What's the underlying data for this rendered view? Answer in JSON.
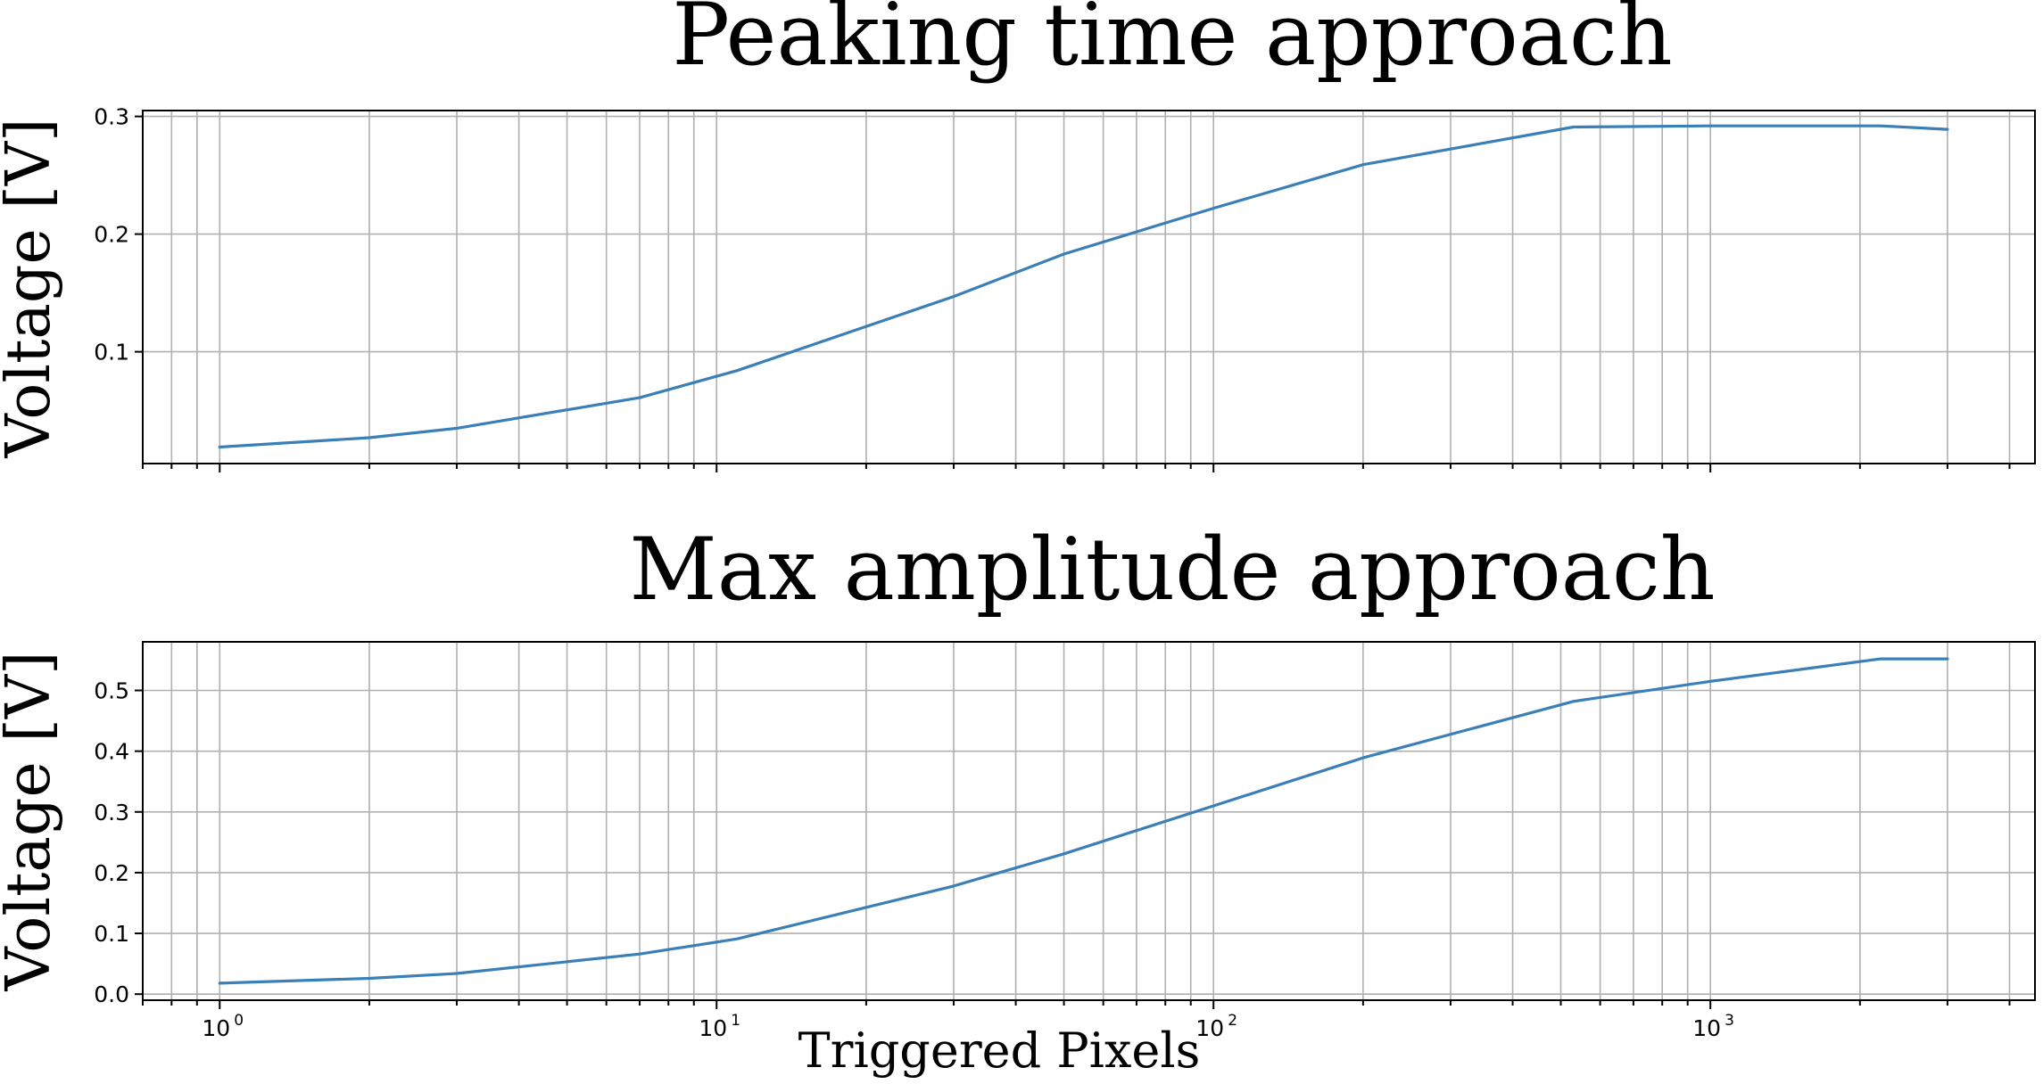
{
  "chart_data": [
    {
      "type": "line",
      "title": "Peaking time approach",
      "xlabel": "",
      "ylabel": "Voltage [V]",
      "xscale": "log",
      "xlim": [
        0.7,
        4500
      ],
      "ylim": [
        0.005,
        0.305
      ],
      "yticks": [
        "0.1",
        "0.2",
        "0.3"
      ],
      "ytick_values": [
        0.1,
        0.2,
        0.3
      ],
      "xtick_labels_shown": false,
      "grid": true,
      "color": "#3a7fb8",
      "x": [
        1,
        2,
        3,
        7,
        11,
        30,
        50,
        100,
        200,
        530,
        1000,
        2200,
        3000
      ],
      "y": [
        0.019,
        0.027,
        0.035,
        0.061,
        0.084,
        0.147,
        0.183,
        0.222,
        0.259,
        0.291,
        0.292,
        0.292,
        0.289
      ]
    },
    {
      "type": "line",
      "title": "Max amplitude approach",
      "xlabel": "Triggered Pixels",
      "ylabel": "Voltage [V]",
      "xscale": "log",
      "xlim": [
        0.7,
        4500
      ],
      "ylim": [
        -0.01,
        0.58
      ],
      "yticks": [
        "0.0",
        "0.1",
        "0.2",
        "0.3",
        "0.4",
        "0.5"
      ],
      "ytick_values": [
        0.0,
        0.1,
        0.2,
        0.3,
        0.4,
        0.5
      ],
      "xtick_exponents": [
        "0",
        "1",
        "2",
        "3"
      ],
      "xtick_values": [
        1,
        10,
        100,
        1000
      ],
      "grid": true,
      "color": "#3a7fb8",
      "x": [
        1,
        2,
        3,
        7,
        11,
        30,
        50,
        100,
        200,
        530,
        1000,
        2200,
        3000
      ],
      "y": [
        0.018,
        0.026,
        0.034,
        0.066,
        0.091,
        0.178,
        0.231,
        0.31,
        0.389,
        0.482,
        0.515,
        0.552,
        0.552
      ]
    }
  ]
}
